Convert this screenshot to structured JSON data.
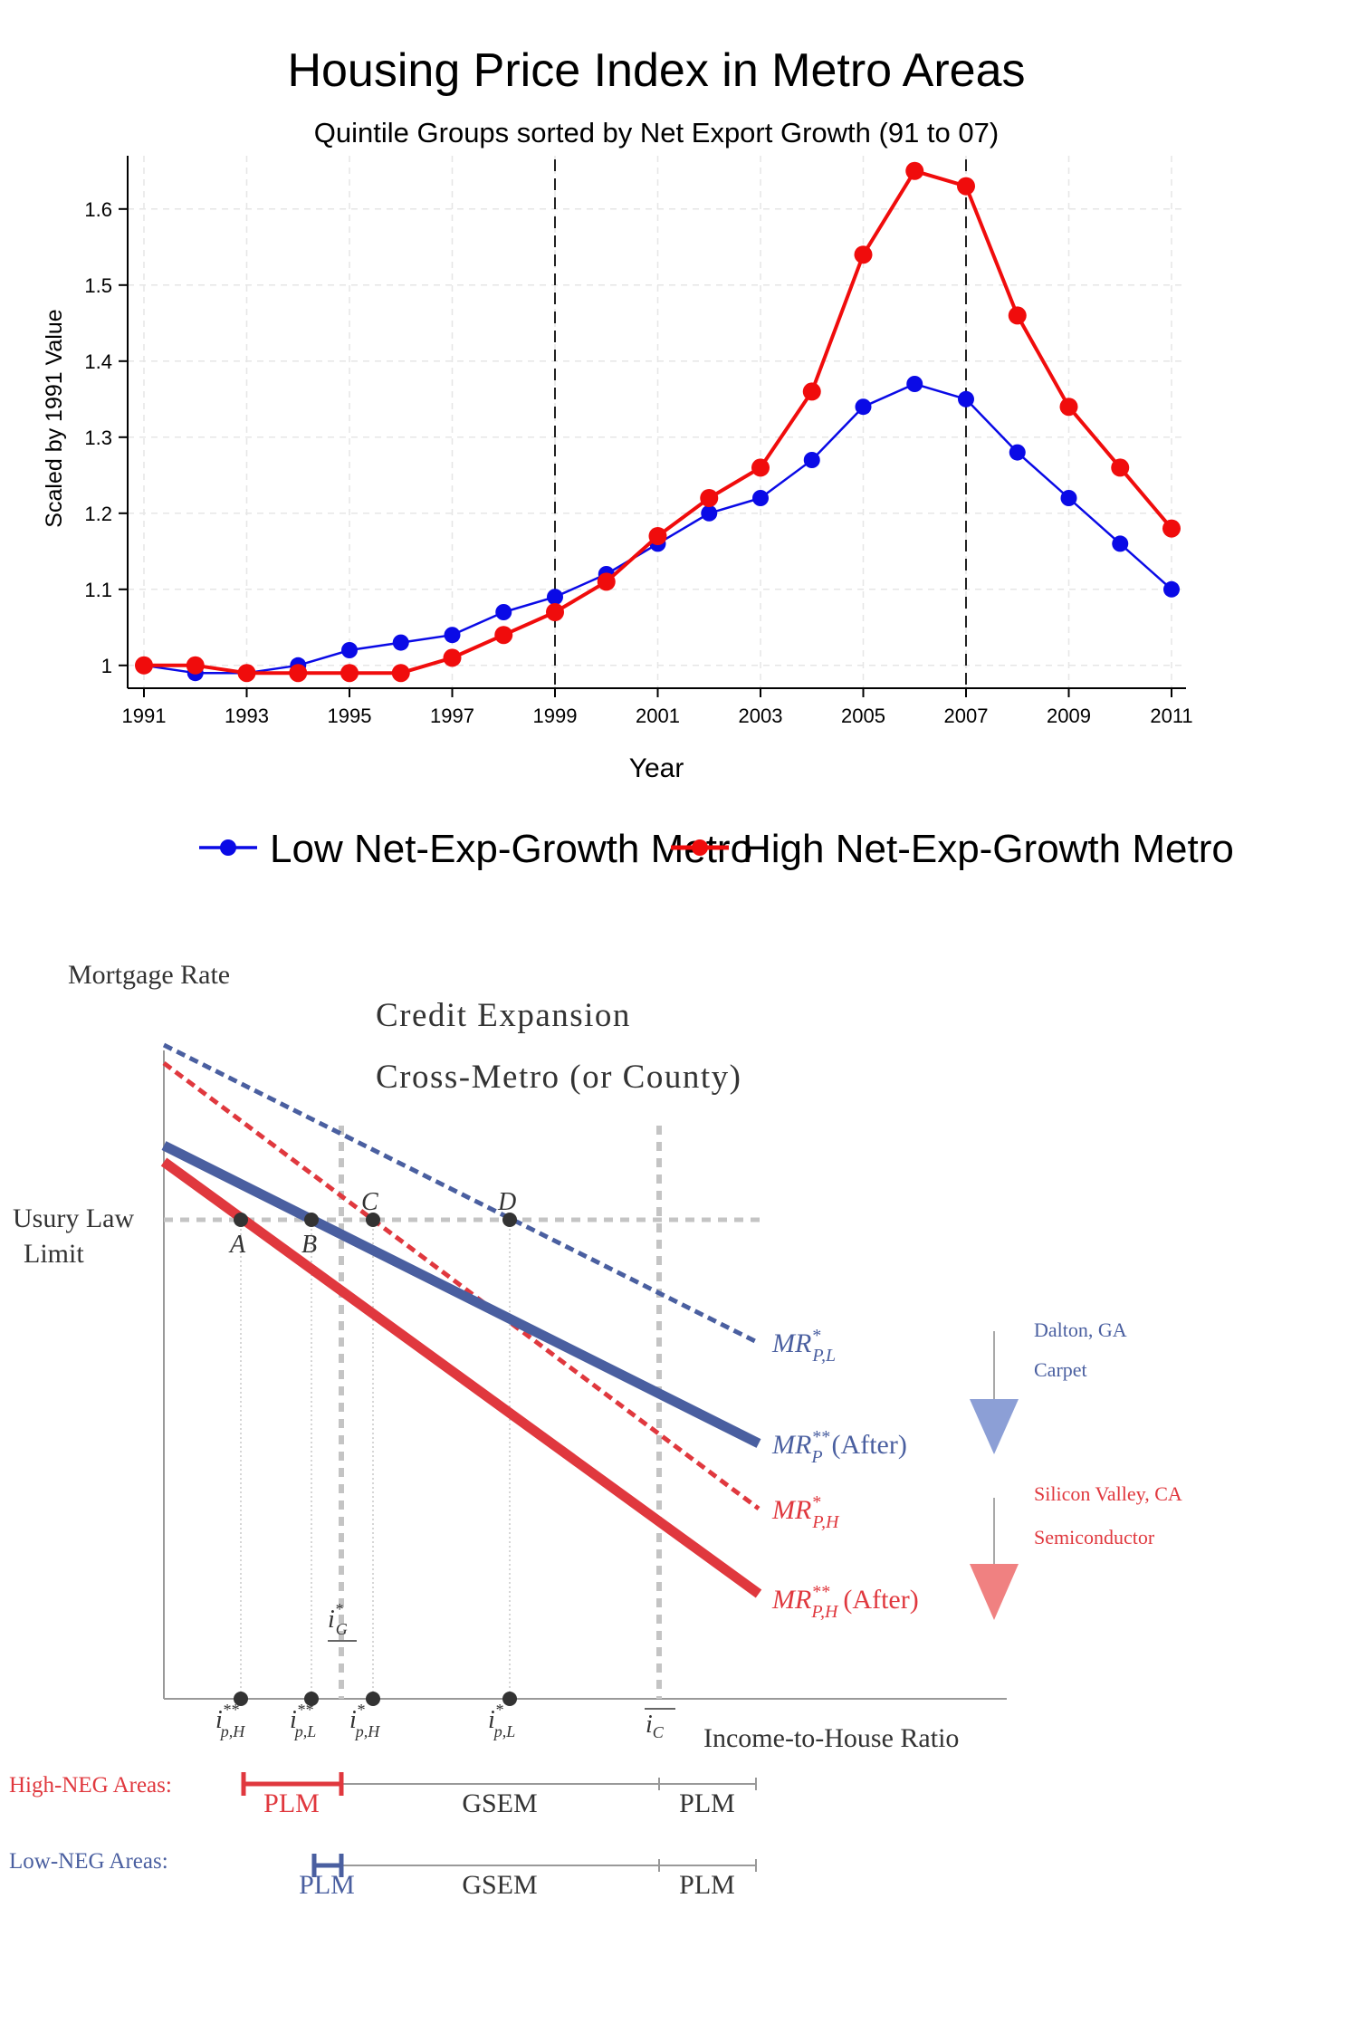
{
  "chart_data": [
    {
      "type": "line",
      "title": "Housing Price Index in Metro Areas",
      "subtitle": "Quintile Groups sorted by Net Export Growth (91 to 07)",
      "xlabel": "Year",
      "ylabel": "Scaled by 1991 Value",
      "xlim": [
        1991,
        2011
      ],
      "ylim": [
        0.97,
        1.67
      ],
      "x_ticks": [
        1991,
        1993,
        1995,
        1997,
        1999,
        2001,
        2003,
        2005,
        2007,
        2009,
        2011
      ],
      "y_ticks": [
        1,
        1.1,
        1.2,
        1.3,
        1.4,
        1.5,
        1.6
      ],
      "y_tick_labels": [
        "1",
        "1.1",
        "1.2",
        "1.3",
        "1.4",
        "1.5",
        "1.6"
      ],
      "vlines": [
        1999,
        2007
      ],
      "grid": true,
      "legend_position": "bottom",
      "series": [
        {
          "name": "Low Net-Exp-Growth Metro",
          "color": "#0a0ae6",
          "x": [
            1991,
            1992,
            1993,
            1994,
            1995,
            1996,
            1997,
            1998,
            1999,
            2000,
            2001,
            2002,
            2003,
            2004,
            2005,
            2006,
            2007,
            2008,
            2009,
            2010,
            2011
          ],
          "y": [
            1.0,
            0.99,
            0.99,
            1.0,
            1.02,
            1.03,
            1.04,
            1.07,
            1.09,
            1.12,
            1.16,
            1.2,
            1.22,
            1.27,
            1.34,
            1.37,
            1.35,
            1.28,
            1.22,
            1.16,
            1.1
          ]
        },
        {
          "name": "High Net-Exp-Growth Metro",
          "color": "#f00c0c",
          "x": [
            1991,
            1992,
            1993,
            1994,
            1995,
            1996,
            1997,
            1998,
            1999,
            2000,
            2001,
            2002,
            2003,
            2004,
            2005,
            2006,
            2007,
            2008,
            2009,
            2010,
            2011
          ],
          "y": [
            1.0,
            1.0,
            0.99,
            0.99,
            0.99,
            0.99,
            1.01,
            1.04,
            1.07,
            1.11,
            1.17,
            1.22,
            1.26,
            1.36,
            1.54,
            1.65,
            1.63,
            1.46,
            1.34,
            1.26,
            1.18
          ]
        }
      ]
    },
    {
      "type": "diagram",
      "title": "Credit Expansion",
      "subtitle": "Cross-Metro (or County)",
      "ylabel": "Mortgage Rate",
      "xlabel": "Income-to-House Ratio",
      "usury_label_1": "Usury Law",
      "usury_label_2": "Limit",
      "points": [
        {
          "label": "A"
        },
        {
          "label": "B"
        },
        {
          "label": "C"
        },
        {
          "label": "D"
        }
      ],
      "curve_labels": {
        "pl_star": {
          "base": "MR",
          "sup": "*",
          "sub": "P,L",
          "suffix": ""
        },
        "p_after": {
          "base": "MR",
          "sup": "**",
          "sub": "P",
          "suffix": "(After)"
        },
        "ph_star": {
          "base": "MR",
          "sup": "*",
          "sub": "P,H",
          "suffix": ""
        },
        "ph_after": {
          "base": "MR",
          "sup": "**",
          "sub": "P,H",
          "suffix": "(After)"
        }
      },
      "axis_labels": {
        "i_ph_2": {
          "base": "i",
          "sup": "**",
          "sub": "p,H"
        },
        "i_pl_2": {
          "base": "i",
          "sup": "**",
          "sub": "p,L"
        },
        "i_ph_1": {
          "base": "i",
          "sup": "*",
          "sub": "p,H"
        },
        "i_pl_1": {
          "base": "i",
          "sup": "*",
          "sub": "p,L"
        },
        "i_c": {
          "base": "i",
          "sub": "C"
        },
        "i_g": {
          "base": "i",
          "sup": "*",
          "sub": "G"
        }
      },
      "annotations": {
        "low_city": "Dalton, GA",
        "low_industry": "Carpet",
        "high_city": "Silicon Valley, CA",
        "high_industry": "Semiconductor"
      },
      "regimes": {
        "high_label": "High-NEG Areas:",
        "low_label": "Low-NEG Areas:",
        "plm": "PLM",
        "gsem": "GSEM"
      },
      "colors": {
        "blue": "#4a5fa0",
        "red": "#e0383e",
        "guide": "#c4c4c4"
      }
    }
  ]
}
